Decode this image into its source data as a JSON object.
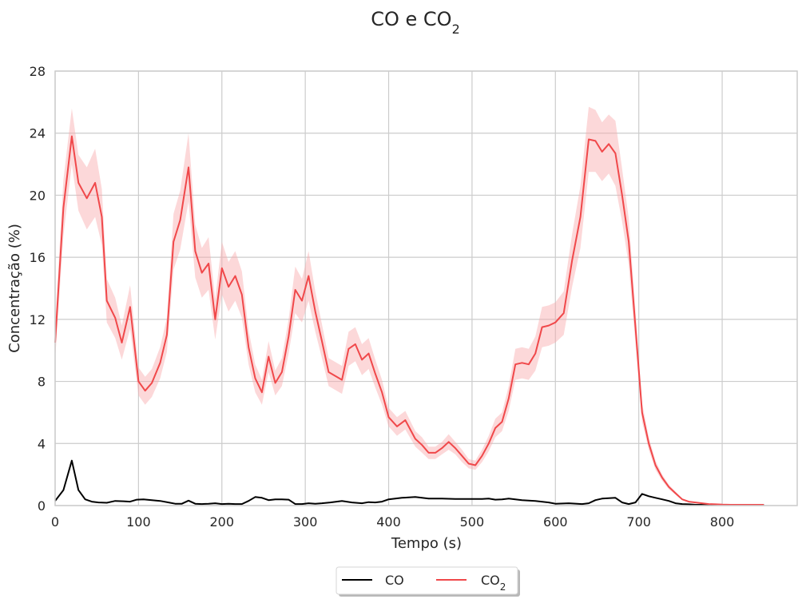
{
  "chart_data": {
    "type": "line",
    "title": "CO e CO",
    "title_sub": "2",
    "xlabel": "Tempo (s)",
    "ylabel": "Concentração (%)",
    "xlim": [
      0,
      890
    ],
    "ylim": [
      0,
      28
    ],
    "xticks": [
      0,
      100,
      200,
      300,
      400,
      500,
      600,
      700,
      800
    ],
    "yticks": [
      0,
      4,
      8,
      12,
      16,
      20,
      24,
      28
    ],
    "grid": true,
    "legend_position": "bottom-center",
    "series": [
      {
        "name": "CO",
        "name_sub": "",
        "color": "#000000",
        "x": [
          0,
          10,
          20,
          28,
          36,
          44,
          52,
          62,
          72,
          82,
          90,
          98,
          106,
          116,
          126,
          136,
          144,
          152,
          160,
          168,
          176,
          184,
          192,
          200,
          208,
          216,
          224,
          232,
          240,
          248,
          256,
          264,
          272,
          280,
          288,
          296,
          304,
          312,
          320,
          330,
          344,
          356,
          368,
          376,
          384,
          392,
          400,
          416,
          432,
          448,
          464,
          480,
          496,
          512,
          520,
          528,
          536,
          544,
          560,
          576,
          592,
          600,
          616,
          632,
          640,
          648,
          656,
          664,
          672,
          680,
          688,
          696,
          704,
          712,
          720,
          728,
          736,
          744,
          752,
          760,
          768,
          776,
          784,
          792,
          800,
          810,
          820,
          830,
          840,
          850
        ],
        "y": [
          0.3,
          1.0,
          2.9,
          1.0,
          0.4,
          0.25,
          0.2,
          0.18,
          0.3,
          0.28,
          0.25,
          0.38,
          0.4,
          0.35,
          0.3,
          0.2,
          0.12,
          0.12,
          0.32,
          0.12,
          0.1,
          0.12,
          0.15,
          0.1,
          0.12,
          0.1,
          0.1,
          0.3,
          0.55,
          0.5,
          0.35,
          0.4,
          0.4,
          0.38,
          0.1,
          0.1,
          0.15,
          0.12,
          0.15,
          0.2,
          0.3,
          0.2,
          0.15,
          0.22,
          0.2,
          0.25,
          0.4,
          0.5,
          0.55,
          0.45,
          0.45,
          0.42,
          0.42,
          0.42,
          0.45,
          0.38,
          0.4,
          0.45,
          0.35,
          0.3,
          0.2,
          0.12,
          0.15,
          0.1,
          0.15,
          0.35,
          0.45,
          0.48,
          0.5,
          0.2,
          0.1,
          0.2,
          0.75,
          0.6,
          0.5,
          0.4,
          0.3,
          0.15,
          0.1,
          0.08,
          0.05,
          0.05,
          0.05,
          0.05,
          0.05,
          0.05,
          0.05,
          0.05,
          0.05,
          0.05
        ]
      },
      {
        "name": "CO",
        "name_sub": "2",
        "color": "#f0484a",
        "band_color": "#f9a8aa",
        "x": [
          0,
          10,
          20,
          28,
          38,
          48,
          56,
          62,
          72,
          80,
          90,
          100,
          108,
          116,
          126,
          134,
          142,
          150,
          160,
          168,
          176,
          184,
          192,
          200,
          208,
          216,
          224,
          232,
          240,
          248,
          256,
          264,
          272,
          280,
          288,
          296,
          304,
          312,
          320,
          328,
          344,
          352,
          360,
          368,
          376,
          384,
          392,
          400,
          410,
          420,
          432,
          440,
          448,
          456,
          464,
          472,
          480,
          488,
          496,
          504,
          512,
          520,
          528,
          536,
          544,
          552,
          560,
          568,
          576,
          584,
          592,
          600,
          610,
          620,
          630,
          640,
          648,
          656,
          664,
          672,
          680,
          688,
          696,
          704,
          712,
          720,
          728,
          736,
          744,
          752,
          760,
          768,
          776,
          784,
          792,
          800,
          810,
          820,
          830,
          840,
          850
        ],
        "y": [
          10.5,
          19.2,
          23.8,
          20.8,
          19.8,
          20.8,
          18.6,
          13.2,
          12.1,
          10.5,
          12.8,
          8.0,
          7.4,
          7.9,
          9.2,
          11.0,
          17.0,
          18.4,
          21.8,
          16.4,
          15.0,
          15.6,
          12.0,
          15.3,
          14.1,
          14.8,
          13.6,
          10.2,
          8.2,
          7.3,
          9.6,
          7.9,
          8.6,
          10.9,
          13.9,
          13.2,
          14.8,
          12.5,
          10.6,
          8.6,
          8.1,
          10.1,
          10.4,
          9.4,
          9.8,
          8.5,
          7.3,
          5.7,
          5.1,
          5.5,
          4.3,
          3.9,
          3.4,
          3.4,
          3.7,
          4.1,
          3.7,
          3.2,
          2.7,
          2.6,
          3.2,
          4.0,
          5.0,
          5.4,
          6.9,
          9.1,
          9.2,
          9.1,
          9.8,
          11.5,
          11.6,
          11.8,
          12.4,
          15.8,
          18.6,
          23.6,
          23.5,
          22.8,
          23.3,
          22.7,
          20.0,
          17.0,
          11.5,
          6.0,
          4.0,
          2.6,
          1.8,
          1.2,
          0.8,
          0.4,
          0.25,
          0.2,
          0.15,
          0.1,
          0.08,
          0.06,
          0.05,
          0.05,
          0.05,
          0.05,
          0.05
        ],
        "band_halfwidth": [
          1.1,
          1.8,
          1.8,
          1.8,
          2.0,
          2.2,
          1.8,
          1.4,
          1.3,
          1.1,
          1.4,
          0.9,
          0.9,
          0.9,
          1.0,
          1.1,
          1.8,
          1.9,
          2.2,
          1.7,
          1.6,
          1.7,
          1.3,
          1.7,
          1.6,
          1.6,
          1.5,
          1.1,
          0.9,
          0.8,
          1.0,
          0.8,
          0.9,
          1.1,
          1.5,
          1.4,
          1.6,
          1.3,
          1.1,
          0.9,
          0.9,
          1.1,
          1.1,
          1.0,
          1.0,
          0.9,
          0.8,
          0.6,
          0.6,
          0.6,
          0.5,
          0.5,
          0.4,
          0.4,
          0.4,
          0.5,
          0.4,
          0.4,
          0.3,
          0.3,
          0.4,
          0.5,
          0.6,
          0.6,
          0.8,
          1.0,
          1.0,
          1.0,
          1.1,
          1.3,
          1.3,
          1.3,
          1.4,
          1.7,
          2.0,
          2.1,
          2.0,
          1.9,
          1.9,
          2.1,
          1.7,
          1.5,
          1.1,
          0.6,
          0.4,
          0.3,
          0.2,
          0.15,
          0.1,
          0.05,
          0.04,
          0.03,
          0.02,
          0.02,
          0.01,
          0.01,
          0.01,
          0.01,
          0.01,
          0.01,
          0.01
        ]
      }
    ]
  }
}
